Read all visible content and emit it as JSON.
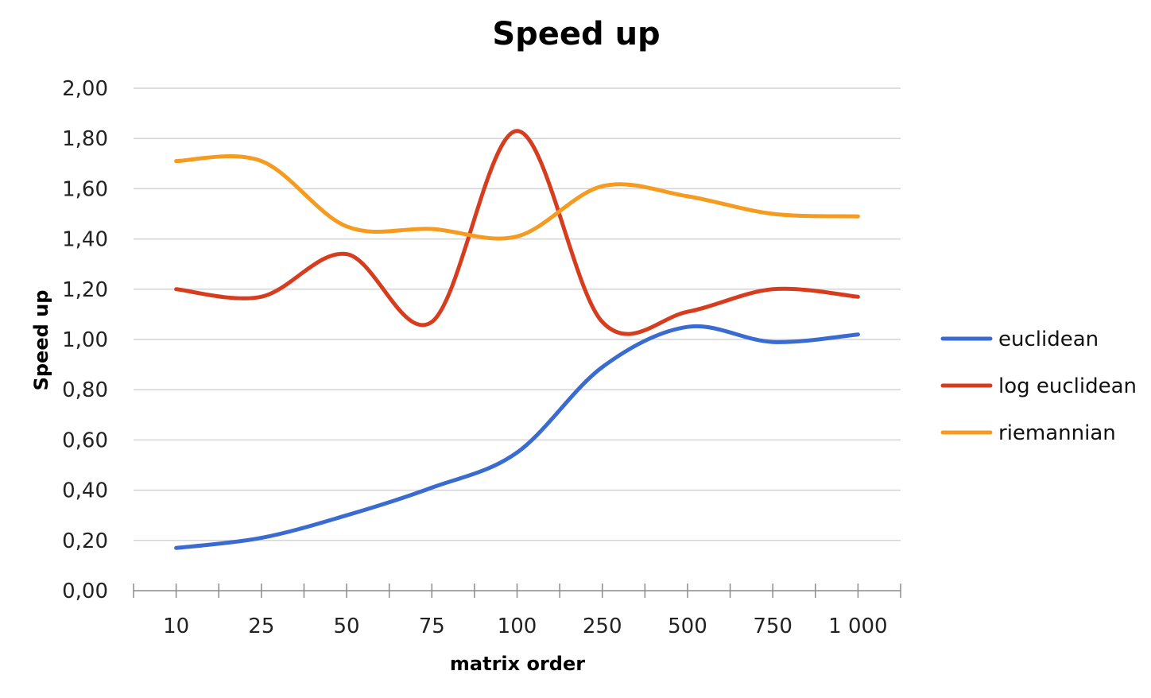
{
  "chart_data": {
    "type": "line",
    "title": "Speed up",
    "xlabel": "matrix order",
    "ylabel": "Speed up",
    "categories": [
      "10",
      "25",
      "50",
      "75",
      "100",
      "250",
      "500",
      "750",
      "1 000"
    ],
    "ylim": [
      0,
      2
    ],
    "yticks": [
      "0,00",
      "0,20",
      "0,40",
      "0,60",
      "0,80",
      "1,00",
      "1,20",
      "1,40",
      "1,60",
      "1,80",
      "2,00"
    ],
    "grid": true,
    "smooth": true,
    "legend_position": "right",
    "series": [
      {
        "name": "euclidean",
        "color": "#3a6bd1",
        "values": [
          0.17,
          0.21,
          0.3,
          0.41,
          0.55,
          0.89,
          1.05,
          0.99,
          1.02
        ]
      },
      {
        "name": "log euclidean",
        "color": "#d63d1f",
        "values": [
          1.2,
          1.17,
          1.34,
          1.07,
          1.83,
          1.07,
          1.11,
          1.2,
          1.17
        ]
      },
      {
        "name": "riemannian",
        "color": "#f59b1f",
        "values": [
          1.71,
          1.71,
          1.45,
          1.44,
          1.41,
          1.61,
          1.57,
          1.5,
          1.49
        ]
      }
    ]
  }
}
